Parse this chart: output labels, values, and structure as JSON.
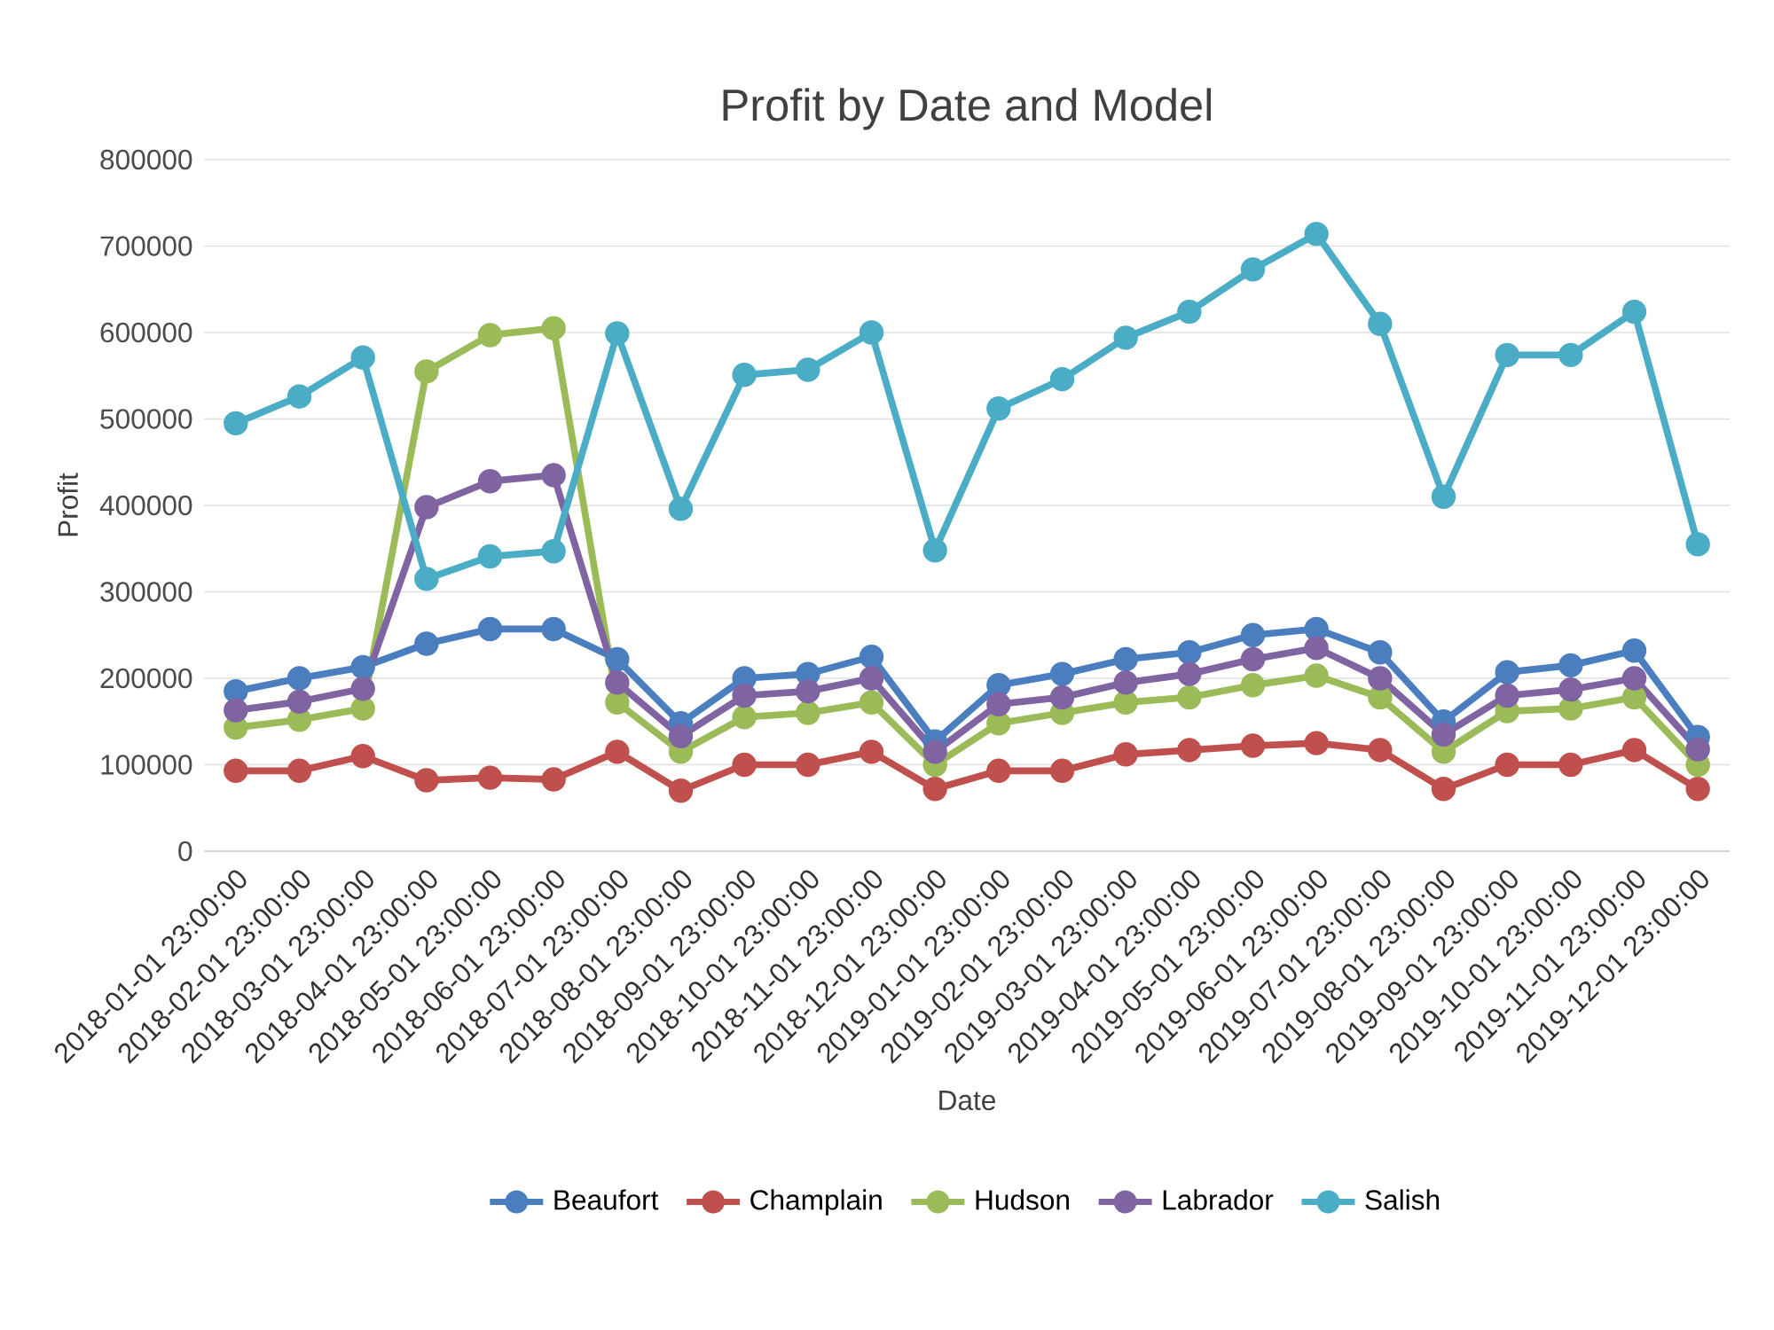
{
  "chart_data": {
    "type": "line",
    "title": "Profit by Date and Model",
    "xlabel": "Date",
    "ylabel": "Profit",
    "categories": [
      "2018-01-01 23:00:00",
      "2018-02-01 23:00:00",
      "2018-03-01 23:00:00",
      "2018-04-01 23:00:00",
      "2018-05-01 23:00:00",
      "2018-06-01 23:00:00",
      "2018-07-01 23:00:00",
      "2018-08-01 23:00:00",
      "2018-09-01 23:00:00",
      "2018-10-01 23:00:00",
      "2018-11-01 23:00:00",
      "2018-12-01 23:00:00",
      "2019-01-01 23:00:00",
      "2019-02-01 23:00:00",
      "2019-03-01 23:00:00",
      "2019-04-01 23:00:00",
      "2019-05-01 23:00:00",
      "2019-06-01 23:00:00",
      "2019-07-01 23:00:00",
      "2019-08-01 23:00:00",
      "2019-09-01 23:00:00",
      "2019-10-01 23:00:00",
      "2019-11-01 23:00:00",
      "2019-12-01 23:00:00"
    ],
    "series": [
      {
        "name": "Beaufort",
        "color": "#4a7ebf",
        "values": [
          185000,
          200000,
          213000,
          240000,
          257000,
          257000,
          222000,
          148000,
          200000,
          205000,
          225000,
          127000,
          192000,
          205000,
          222000,
          230000,
          250000,
          257000,
          230000,
          150000,
          207000,
          215000,
          232000,
          132000
        ]
      },
      {
        "name": "Champlain",
        "color": "#c0504d",
        "values": [
          93000,
          93000,
          110000,
          82000,
          85000,
          83000,
          115000,
          70000,
          100000,
          100000,
          115000,
          72000,
          93000,
          93000,
          112000,
          117000,
          122000,
          125000,
          117000,
          72000,
          100000,
          100000,
          117000,
          72000
        ]
      },
      {
        "name": "Hudson",
        "color": "#9bbb59",
        "values": [
          143000,
          152000,
          165000,
          555000,
          597000,
          605000,
          172000,
          115000,
          155000,
          160000,
          172000,
          100000,
          148000,
          160000,
          172000,
          178000,
          192000,
          203000,
          178000,
          115000,
          162000,
          165000,
          178000,
          100000
        ]
      },
      {
        "name": "Labrador",
        "color": "#8064a2",
        "values": [
          163000,
          173000,
          188000,
          398000,
          428000,
          435000,
          195000,
          133000,
          180000,
          185000,
          200000,
          115000,
          170000,
          178000,
          195000,
          205000,
          222000,
          235000,
          200000,
          135000,
          180000,
          187000,
          200000,
          118000
        ]
      },
      {
        "name": "Salish",
        "color": "#4bacc6",
        "values": [
          495000,
          526000,
          571000,
          315000,
          341000,
          347000,
          599000,
          396000,
          551000,
          557000,
          600000,
          348000,
          512000,
          546000,
          594000,
          624000,
          673000,
          714000,
          610000,
          410000,
          574000,
          574000,
          624000,
          355000
        ]
      }
    ],
    "ylim": [
      0,
      800000
    ],
    "yticks": [
      0,
      100000,
      200000,
      300000,
      400000,
      500000,
      600000,
      700000,
      800000
    ],
    "grid": "y",
    "legend": "bottom",
    "marker": "circle",
    "line_style": "solid"
  }
}
